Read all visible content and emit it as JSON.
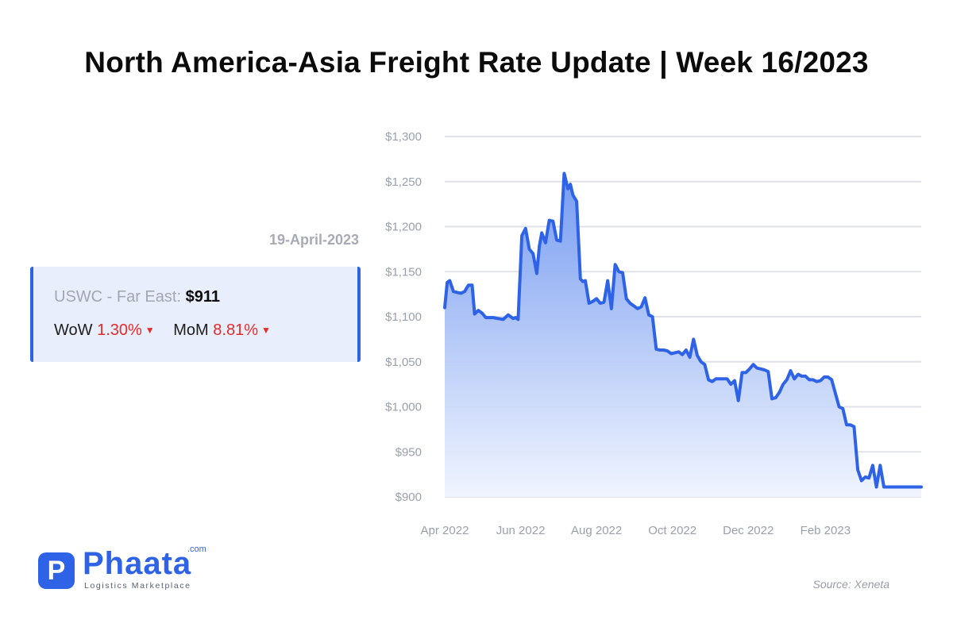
{
  "title": "North America-Asia Freight Rate Update | Week 16/2023",
  "date": "19-April-2023",
  "card": {
    "route_label": "USWC - Far East: ",
    "price": "$911",
    "wow_label": "WoW",
    "wow_value": "1.30%",
    "mom_label": "MoM",
    "mom_value": "8.81%",
    "trend": "down"
  },
  "logo": {
    "mark": "P",
    "name": "Phaata",
    "tld": ".com",
    "tagline": "Logistics Marketplace"
  },
  "source": "Source: Xeneta",
  "colors": {
    "line": "#2e63e8",
    "area_top": "#6f96f0",
    "area_bottom": "#eef3fe",
    "grid": "#dfe2e8",
    "axis_text": "#9aa0ab",
    "down": "#e62b2b"
  },
  "chart_data": {
    "type": "area",
    "title": "",
    "xlabel": "",
    "ylabel": "",
    "ylim": [
      900,
      1300
    ],
    "y_ticks": [
      900,
      950,
      1000,
      1050,
      1100,
      1150,
      1200,
      1250,
      1300
    ],
    "y_tick_labels": [
      "$900",
      "$950",
      "$1,000",
      "$1,050",
      "$1,100",
      "$1,150",
      "$1,200",
      "$1,250",
      "$1,300"
    ],
    "x_ticks": [
      "Apr 2022",
      "Jun 2022",
      "Aug 2022",
      "Oct 2022",
      "Dec 2022",
      "Feb 2023"
    ],
    "x_tick_dates": [
      "2022-04-01",
      "2022-06-01",
      "2022-08-01",
      "2022-10-01",
      "2022-12-01",
      "2023-02-01"
    ],
    "xlim": [
      "2022-04-01",
      "2023-04-19"
    ],
    "grid": true,
    "series": [
      {
        "x": [
          "2022-04-01",
          "2022-04-03",
          "2022-04-05",
          "2022-04-08",
          "2022-04-11",
          "2022-04-14",
          "2022-04-17",
          "2022-04-20",
          "2022-04-23",
          "2022-04-25",
          "2022-04-28",
          "2022-05-01",
          "2022-05-04",
          "2022-05-07",
          "2022-05-10",
          "2022-05-14",
          "2022-05-18",
          "2022-05-22",
          "2022-05-26",
          "2022-05-28",
          "2022-05-30",
          "2022-06-02",
          "2022-06-05",
          "2022-06-08",
          "2022-06-11",
          "2022-06-14",
          "2022-06-16",
          "2022-06-18",
          "2022-06-21",
          "2022-06-24",
          "2022-06-27",
          "2022-06-30",
          "2022-07-03",
          "2022-07-06",
          "2022-07-09",
          "2022-07-11",
          "2022-07-13",
          "2022-07-16",
          "2022-07-19",
          "2022-07-21",
          "2022-07-23",
          "2022-07-26",
          "2022-07-29",
          "2022-08-01",
          "2022-08-04",
          "2022-08-07",
          "2022-08-10",
          "2022-08-13",
          "2022-08-16",
          "2022-08-19",
          "2022-08-22",
          "2022-08-25",
          "2022-08-28",
          "2022-08-31",
          "2022-09-03",
          "2022-09-06",
          "2022-09-09",
          "2022-09-12",
          "2022-09-15",
          "2022-09-18",
          "2022-09-21",
          "2022-09-24",
          "2022-09-27",
          "2022-09-30",
          "2022-10-03",
          "2022-10-06",
          "2022-10-09",
          "2022-10-12",
          "2022-10-15",
          "2022-10-18",
          "2022-10-21",
          "2022-10-24",
          "2022-10-27",
          "2022-10-30",
          "2022-11-02",
          "2022-11-05",
          "2022-11-08",
          "2022-11-11",
          "2022-11-14",
          "2022-11-17",
          "2022-11-20",
          "2022-11-23",
          "2022-11-26",
          "2022-11-29",
          "2022-12-02",
          "2022-12-05",
          "2022-12-08",
          "2022-12-11",
          "2022-12-14",
          "2022-12-17",
          "2022-12-20",
          "2022-12-23",
          "2022-12-26",
          "2022-12-29",
          "2023-01-01",
          "2023-01-04",
          "2023-01-07",
          "2023-01-10",
          "2023-01-13",
          "2023-01-16",
          "2023-01-19",
          "2023-01-22",
          "2023-01-25",
          "2023-01-28",
          "2023-01-31",
          "2023-02-03",
          "2023-02-06",
          "2023-02-09",
          "2023-02-12",
          "2023-02-15",
          "2023-02-18",
          "2023-02-21",
          "2023-02-24",
          "2023-02-27",
          "2023-03-02",
          "2023-03-05",
          "2023-03-08",
          "2023-03-11",
          "2023-03-14",
          "2023-03-17",
          "2023-03-20",
          "2023-03-23",
          "2023-03-26",
          "2023-03-29",
          "2023-04-01",
          "2023-04-04",
          "2023-04-07",
          "2023-04-10",
          "2023-04-13",
          "2023-04-16",
          "2023-04-19"
        ],
        "y": [
          1110,
          1138,
          1140,
          1128,
          1127,
          1126,
          1128,
          1135,
          1135,
          1103,
          1107,
          1104,
          1099,
          1099,
          1099,
          1098,
          1097,
          1102,
          1098,
          1099,
          1097,
          1190,
          1198,
          1175,
          1170,
          1148,
          1178,
          1193,
          1182,
          1207,
          1206,
          1185,
          1184,
          1259,
          1242,
          1247,
          1235,
          1228,
          1142,
          1139,
          1140,
          1115,
          1117,
          1120,
          1115,
          1116,
          1140,
          1109,
          1158,
          1150,
          1149,
          1120,
          1115,
          1112,
          1109,
          1111,
          1121,
          1102,
          1100,
          1064,
          1063,
          1063,
          1062,
          1059,
          1060,
          1061,
          1058,
          1063,
          1055,
          1075,
          1057,
          1050,
          1047,
          1030,
          1028,
          1031,
          1031,
          1031,
          1031,
          1025,
          1029,
          1007,
          1038,
          1038,
          1042,
          1047,
          1043,
          1042,
          1041,
          1039,
          1009,
          1010,
          1016,
          1025,
          1030,
          1040,
          1031,
          1036,
          1034,
          1034,
          1030,
          1030,
          1028,
          1029,
          1033,
          1033,
          1030,
          1015,
          1000,
          998,
          980,
          980,
          978,
          930,
          918,
          922,
          921,
          935,
          911,
          935,
          911,
          911,
          911,
          911,
          911,
          911,
          911,
          911,
          911,
          911,
          911
        ]
      }
    ]
  }
}
